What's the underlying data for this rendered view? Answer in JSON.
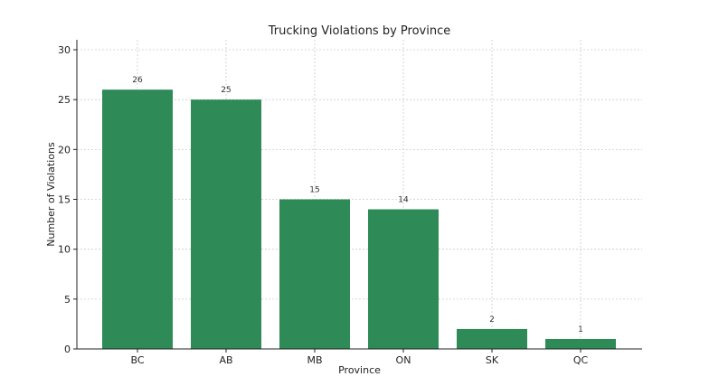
{
  "chart_data": {
    "type": "bar",
    "title": "Trucking Violations by Province",
    "xlabel": "Province",
    "ylabel": "Number of Violations",
    "categories": [
      "BC",
      "AB",
      "MB",
      "ON",
      "SK",
      "QC"
    ],
    "values": [
      26,
      25,
      15,
      14,
      2,
      1
    ],
    "data_labels": [
      "26",
      "25",
      "15",
      "14",
      "2",
      "1"
    ],
    "ylim": [
      0,
      31
    ],
    "yticks": [
      0,
      5,
      10,
      15,
      20,
      25,
      30
    ],
    "ytick_labels": [
      "0",
      "5",
      "10",
      "15",
      "20",
      "25",
      "30"
    ],
    "grid": true,
    "legend": "none",
    "bar_color": "#2e8b57"
  }
}
